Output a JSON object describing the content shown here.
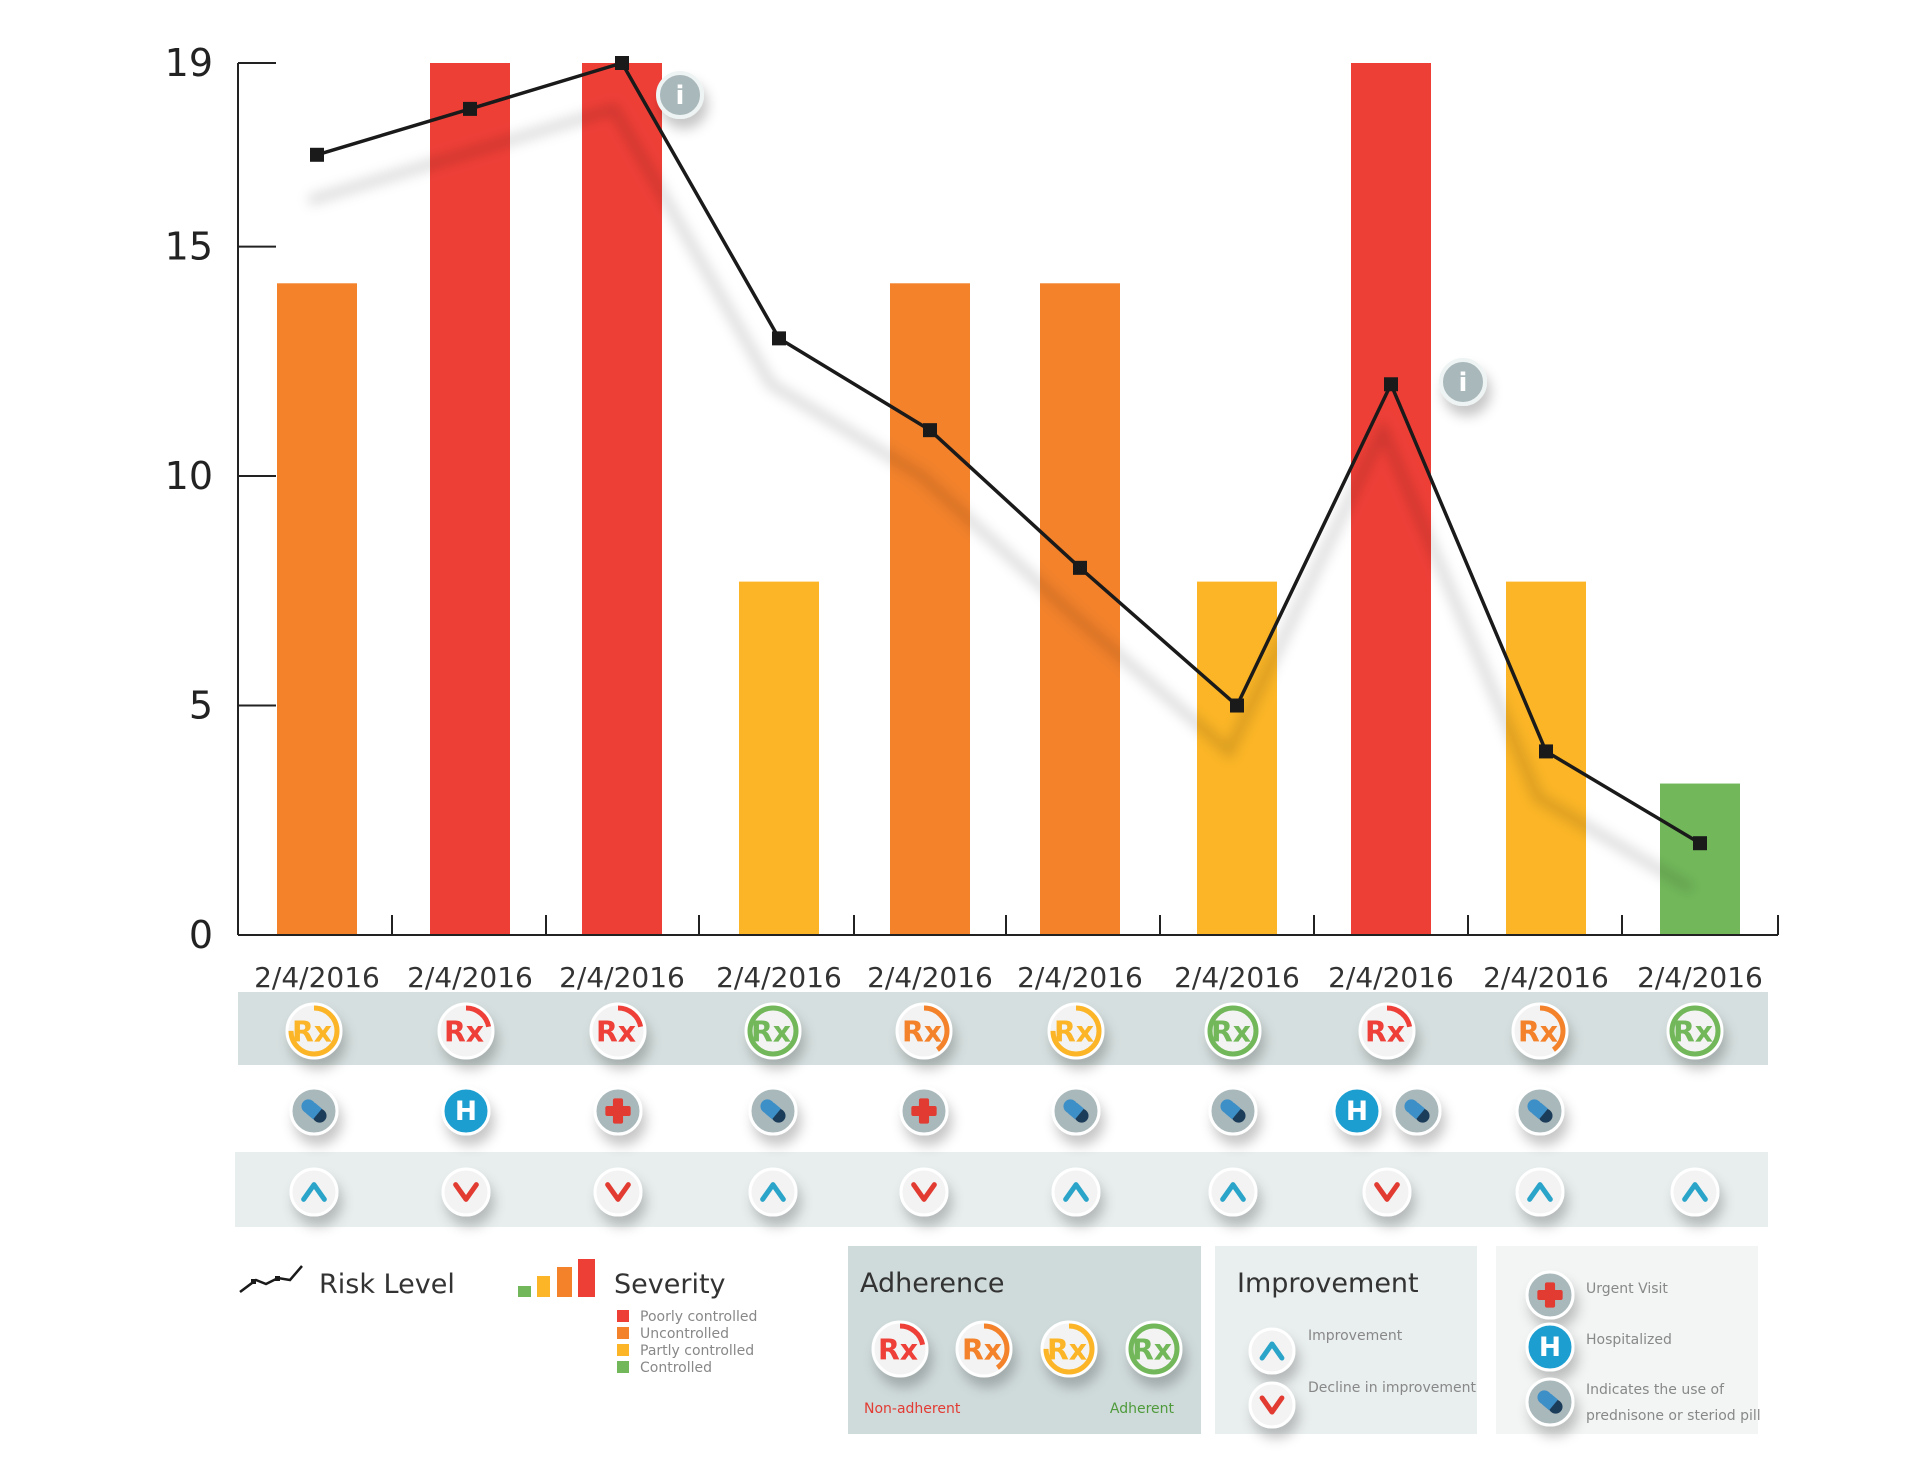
{
  "chart_data": {
    "type": "bar",
    "ylim": [
      0,
      19
    ],
    "yticks": [
      0,
      5,
      10,
      15,
      19
    ],
    "categories": [
      "2/4/2016",
      "2/4/2016",
      "2/4/2016",
      "2/4/2016",
      "2/4/2016",
      "2/4/2016",
      "2/4/2016",
      "2/4/2016",
      "2/4/2016",
      "2/4/2016"
    ],
    "bars": [
      {
        "value": 14.2,
        "severity": "uncontrolled"
      },
      {
        "value": 19,
        "severity": "poorly"
      },
      {
        "value": 19,
        "severity": "poorly"
      },
      {
        "value": 7.7,
        "severity": "partly"
      },
      {
        "value": 14.2,
        "severity": "uncontrolled"
      },
      {
        "value": 14.2,
        "severity": "uncontrolled"
      },
      {
        "value": 7.7,
        "severity": "partly"
      },
      {
        "value": 19,
        "severity": "poorly"
      },
      {
        "value": 7.7,
        "severity": "partly"
      },
      {
        "value": 3.3,
        "severity": "controlled"
      }
    ],
    "risk_line": [
      17,
      18,
      19,
      13,
      11,
      8,
      5,
      12,
      4,
      2
    ],
    "risk_shadow": [
      16,
      17,
      18,
      12,
      10,
      7,
      4,
      11,
      3,
      1
    ],
    "info_markers": [
      2,
      7
    ],
    "grid": false
  },
  "colors": {
    "poorly": "#ee3f37",
    "uncontrolled": "#f3822b",
    "partly": "#fbb526",
    "controlled": "#72b85a",
    "improve": "#2aa4c9",
    "decline": "#e23b33",
    "axis": "#222222",
    "line": "#1a1a1a"
  },
  "table": {
    "adherence": [
      "partly",
      "poorly",
      "poorly",
      "controlled",
      "uncontrolled",
      "partly",
      "controlled",
      "poorly",
      "uncontrolled",
      "controlled"
    ],
    "events": [
      [
        "pill"
      ],
      [
        "hosp"
      ],
      [
        "urgent"
      ],
      [
        "pill"
      ],
      [
        "urgent"
      ],
      [
        "pill"
      ],
      [
        "pill"
      ],
      [
        "hosp",
        "pill"
      ],
      [
        "pill"
      ],
      []
    ],
    "trend": [
      "up",
      "down",
      "down",
      "up",
      "down",
      "up",
      "up",
      "down",
      "up",
      "up"
    ]
  },
  "icons": {
    "rx": "Rx",
    "hospital": "H",
    "urgent": "urgent-visit-icon",
    "pill": "pill-icon",
    "up": "chevron-up-icon",
    "down": "chevron-down-icon",
    "info": "i"
  },
  "legend": {
    "risk_label": "Risk Level",
    "severity_title": "Severity",
    "severity_items": [
      {
        "label": "Poorly controlled",
        "color": "#ee3f37"
      },
      {
        "label": "Uncontrolled",
        "color": "#f3822b"
      },
      {
        "label": "Partly controlled",
        "color": "#fbb526"
      },
      {
        "label": "Controlled",
        "color": "#72b85a"
      }
    ],
    "adherence_title": "Adherence",
    "adherence_icons": [
      "poorly",
      "uncontrolled",
      "partly",
      "controlled"
    ],
    "non_adherent": "Non-adherent",
    "adherent": "Adherent",
    "improvement_title": "Improvement",
    "improvement_label": "Improvement",
    "decline_label": "Decline in improvement",
    "urgent_label": "Urgent Visit",
    "hospitalized_label": "Hospitalized",
    "pill_label_1": "Indicates the use of",
    "pill_label_2": "prednisone or steriod pill"
  }
}
